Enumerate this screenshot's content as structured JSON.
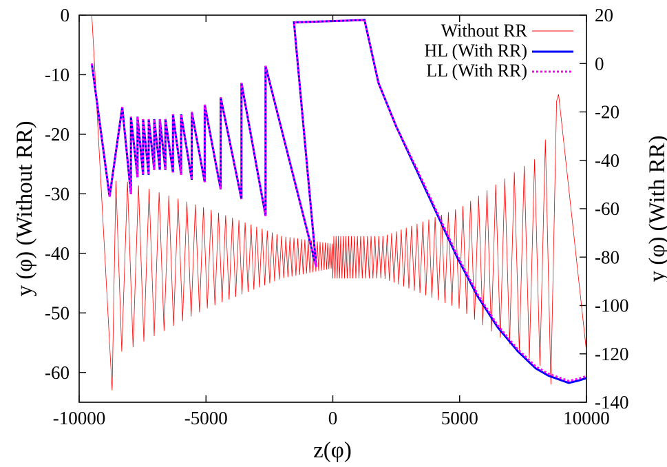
{
  "chart_data": {
    "type": "line",
    "xlabel": "z(φ)",
    "ylabel": "y (φ) (Without RR)",
    "y2label": "y (φ) (With RR)",
    "xlim": [
      -10000,
      10000
    ],
    "ylim": [
      -65,
      0
    ],
    "y2lim": [
      -140,
      20
    ],
    "x_ticks": [
      "-10000",
      "-5000",
      "0",
      "5000",
      "10000"
    ],
    "y_ticks": [
      "0",
      "-10",
      "-20",
      "-30",
      "-40",
      "-50",
      "-60"
    ],
    "y2_ticks": [
      "20",
      "0",
      "-20",
      "-40",
      "-60",
      "-80",
      "-100",
      "-120",
      "-140"
    ],
    "grid": false,
    "legend_position": "top-right",
    "series": [
      {
        "name": "Without RR",
        "axis": "left",
        "color": "#ff0000",
        "style": "solid-thin",
        "description_points": {
          "start": [
            -9500,
            0
          ],
          "first_min": [
            -8700,
            -63
          ],
          "center": [
            0,
            -40.5
          ],
          "envelope_upper_left": [
            [
              -8200,
              -27.8
            ],
            [
              -5000,
              -32.4
            ],
            [
              -2000,
              -37.1
            ],
            [
              0,
              -38.4
            ]
          ],
          "envelope_lower_left": [
            [
              -8200,
              -56.5
            ],
            [
              -5000,
              -49.3
            ],
            [
              -2000,
              -44.2
            ],
            [
              0,
              -42.5
            ]
          ],
          "envelope_upper_right": [
            [
              2000,
              -37.1
            ],
            [
              5000,
              -32.4
            ],
            [
              8200,
              -23.5
            ],
            [
              8900,
              -13.3
            ]
          ],
          "envelope_lower_right": [
            [
              2000,
              -44.2
            ],
            [
              5000,
              -49.3
            ],
            [
              8200,
              -59
            ],
            [
              8400,
              -62
            ]
          ],
          "end": [
            10000,
            -56.5
          ]
        }
      },
      {
        "name": "HL (With RR)",
        "axis": "right",
        "color": "#0000ff",
        "style": "solid-thick",
        "x": [
          -9500,
          -8800,
          -8300,
          -7960,
          -7700,
          -7480,
          -7260,
          -7040,
          -6820,
          -6600,
          -6300,
          -5980,
          -5560,
          -5050,
          -4420,
          -3600,
          -2650,
          -1530,
          -650,
          1100,
          1800,
          2600,
          3500,
          4400,
          5200,
          6000,
          6800,
          7600,
          8400,
          9300,
          10000
        ],
        "y": [
          0,
          -55,
          -19,
          -54,
          -23,
          -47,
          -25,
          -46,
          -25,
          -44,
          -24,
          -46,
          -21,
          -49,
          -17,
          -56,
          -12,
          -63,
          -85,
          17,
          -12,
          -30,
          -48,
          -68,
          -86,
          -102,
          -115,
          -124,
          -130,
          -132,
          -131
        ],
        "valleys": [
          [
            -8800,
            -55
          ],
          [
            -7960,
            -54
          ],
          [
            -7700,
            -47
          ],
          [
            -7480,
            -46
          ],
          [
            -7260,
            -46
          ],
          [
            -7040,
            -44
          ],
          [
            -6820,
            -44
          ],
          [
            -6600,
            -44
          ],
          [
            -6300,
            -45
          ],
          [
            -5980,
            -46
          ],
          [
            -5560,
            -48
          ],
          [
            -5050,
            -49
          ],
          [
            -4420,
            -52
          ],
          [
            -3600,
            -56
          ],
          [
            -2650,
            -63
          ],
          [
            -650,
            -84
          ]
        ],
        "peaks": [
          [
            -8300,
            -18
          ],
          [
            -7960,
            -22
          ],
          [
            -7700,
            -22
          ],
          [
            -7480,
            -23
          ],
          [
            -7260,
            -23
          ],
          [
            -7040,
            -23
          ],
          [
            -6820,
            -23
          ],
          [
            -6600,
            -23
          ],
          [
            -6300,
            -21
          ],
          [
            -5980,
            -21
          ],
          [
            -5560,
            -20
          ],
          [
            -5050,
            -17
          ],
          [
            -4420,
            -14
          ],
          [
            -3600,
            -8
          ],
          [
            -2650,
            -1
          ],
          [
            -1530,
            17
          ]
        ]
      },
      {
        "name": "LL (With RR)",
        "axis": "right",
        "color": "#ff00ff",
        "style": "dotted-thick",
        "note": "overlays HL curve"
      }
    ]
  },
  "legend": {
    "items": [
      {
        "label": "Without RR",
        "color": "#ff0000"
      },
      {
        "label": "HL (With RR)",
        "color": "#0000ff"
      },
      {
        "label": "LL (With RR)",
        "color": "#ff00ff"
      }
    ]
  }
}
